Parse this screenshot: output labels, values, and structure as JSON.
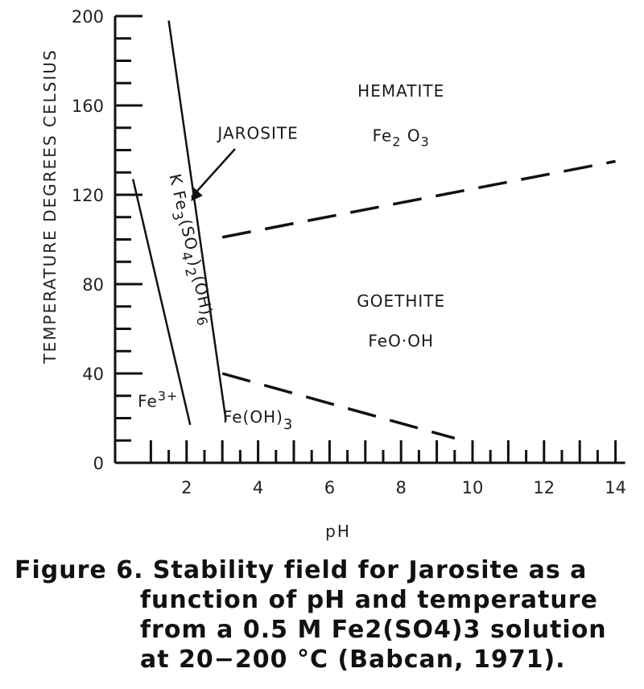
{
  "chart_data": {
    "type": "line",
    "xlabel": "pH",
    "ylabel": "TEMPERATURE DEGREES CELSIUS",
    "xlim": [
      0,
      14
    ],
    "ylim": [
      0,
      200
    ],
    "x_ticks": [
      2,
      4,
      6,
      8,
      10,
      12,
      14
    ],
    "y_ticks": [
      0,
      40,
      80,
      120,
      160,
      200
    ],
    "grid": false,
    "series": [
      {
        "style": "solid",
        "x": [
          0.5,
          2.1
        ],
        "y": [
          127,
          17
        ]
      },
      {
        "style": "solid",
        "x": [
          1.5,
          3.1
        ],
        "y": [
          198,
          19
        ]
      },
      {
        "style": "dashed",
        "x": [
          3.0,
          14.0
        ],
        "y": [
          101,
          135
        ]
      },
      {
        "style": "dashed",
        "x": [
          3.0,
          9.5
        ],
        "y": [
          40,
          11
        ]
      }
    ],
    "annotations": [
      {
        "text": "HEMATITE",
        "x": 8.0,
        "y": 164
      },
      {
        "text": "Fe2O3",
        "x": 8.0,
        "y": 144
      },
      {
        "text": "JAROSITE",
        "x": 4.0,
        "y": 145
      },
      {
        "text": "KFe3(SO4)2(OH)6",
        "x": 2.0,
        "y": 95
      },
      {
        "text": "GOETHITE",
        "x": 8.0,
        "y": 70
      },
      {
        "text": "FeO·OH",
        "x": 8.0,
        "y": 52
      },
      {
        "text": "Fe3+",
        "x": 1.2,
        "y": 25
      },
      {
        "text": "Fe(OH)3",
        "x": 4.0,
        "y": 18
      }
    ]
  },
  "caption": {
    "line1": "Figure 6. Stability field for Jarosite as a",
    "line2": "function of pH and temperature",
    "line3": "from a 0.5 M Fe2(SO4)3 solution",
    "line4": "at 20−200 °C (Babcan, 1971)."
  }
}
